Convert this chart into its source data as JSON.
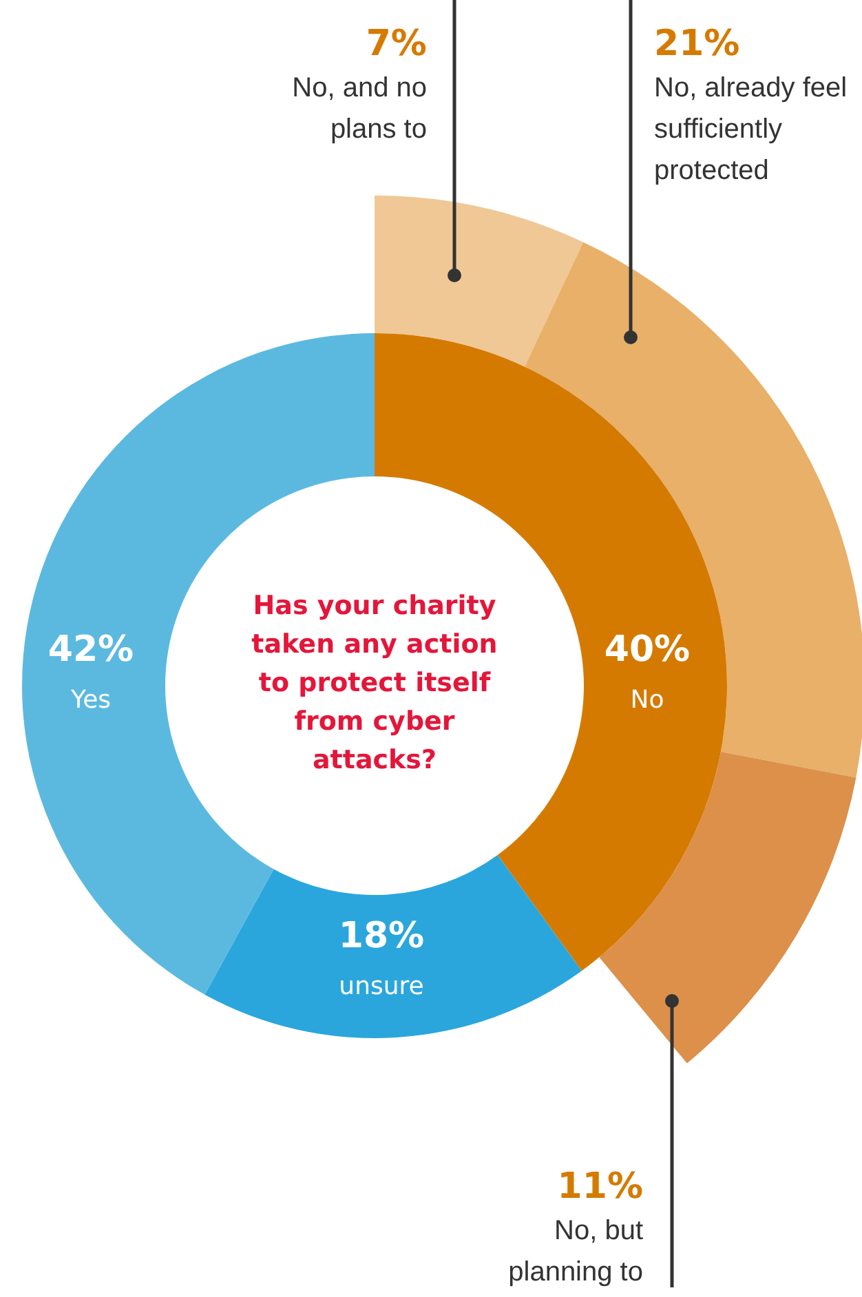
{
  "chart_data": [
    {
      "type": "donut",
      "title": "Has your charity taken any action to protect itself from cyber attacks?",
      "categories": [
        "No",
        "unsure",
        "Yes"
      ],
      "values": [
        40,
        18,
        42
      ],
      "value_labels": [
        "40%",
        "18%",
        "42%"
      ],
      "colors": [
        "#d57a00",
        "#2aa6dc",
        "#5bb9e0"
      ]
    },
    {
      "type": "donut",
      "categories": [
        "No, and no plans to",
        "No, already feel sufficiently protected",
        "No, but planning to"
      ],
      "values": [
        7,
        21,
        11
      ],
      "value_labels": [
        "7%",
        "21%",
        "11%"
      ],
      "colors": [
        "#f0c896",
        "#e8b068",
        "#dc904a"
      ]
    }
  ]
}
